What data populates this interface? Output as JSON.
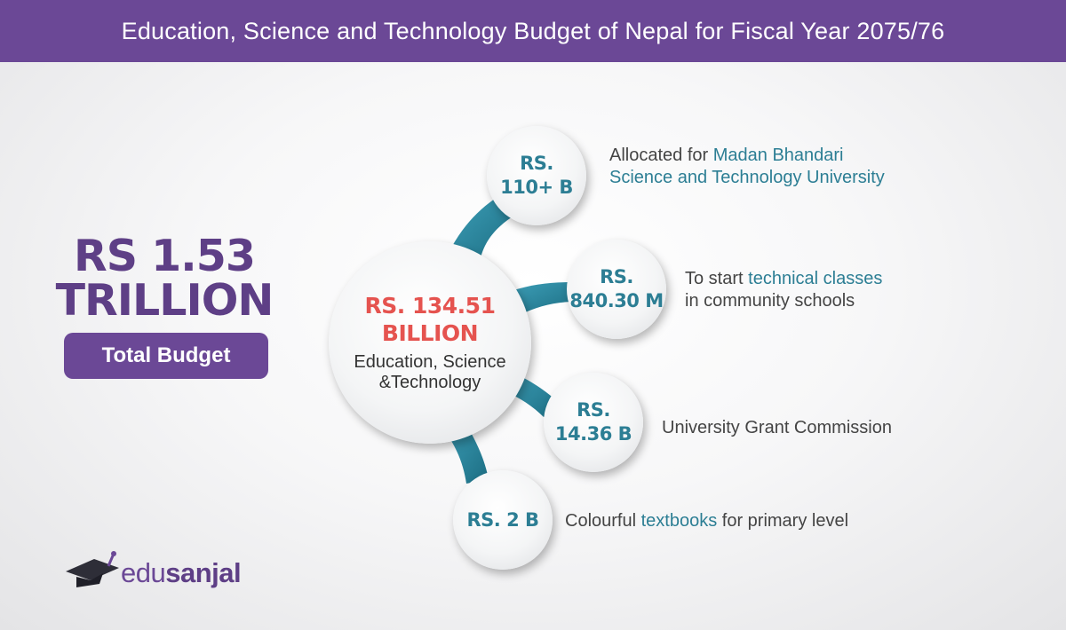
{
  "title": "Education, Science and Technology Budget of Nepal for Fiscal Year 2075/76",
  "total": {
    "line1": "RS 1.53",
    "line2": "TRILLION",
    "badge": "Total Budget"
  },
  "center": {
    "amount_line1": "RS. 134.51",
    "amount_line2": "BILLION",
    "caption_line1": "Education, Science",
    "caption_line2": "&Technology"
  },
  "branches": [
    {
      "amount_line1": "RS.",
      "amount_line2": "110+ B",
      "desc_plain1": "Allocated for ",
      "desc_hl1": "Madan Bhandari",
      "desc_hl2": "Science and Technology University"
    },
    {
      "amount_line1": "RS.",
      "amount_line2": "840.30 M",
      "desc_plain1": "To start ",
      "desc_hl1": "technical classes",
      "desc_plain2": "in community schools"
    },
    {
      "amount_line1": "RS.",
      "amount_line2": "14.36 B",
      "desc_plain1": "University Grant Commission"
    },
    {
      "amount_line1": "RS. 2 B",
      "desc_plain1": "Colourful ",
      "desc_hl1": "textbooks",
      "desc_plain2": " for primary level"
    }
  ],
  "brand": {
    "part1": "edu",
    "part2": "sanjal"
  },
  "colors": {
    "header_bg": "#6b4896",
    "total_text": "#5e3f86",
    "branch_teal": "#2c7e94",
    "center_amount": "#e5534f",
    "highlight_text": "#2c7e94"
  }
}
